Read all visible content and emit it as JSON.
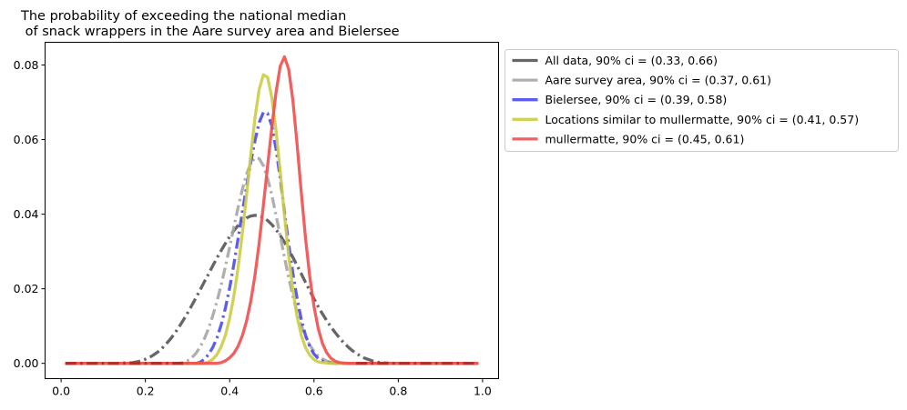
{
  "chart_data": {
    "type": "line",
    "title_lines": [
      "The probability of exceeding the national median",
      " of snack wrappers in the Aare survey area and Bielersee"
    ],
    "xlabel": "",
    "ylabel": "",
    "xlim": [
      -0.038,
      1.038
    ],
    "ylim": [
      -0.0041,
      0.0861
    ],
    "x_ticks": [
      0.0,
      0.2,
      0.4,
      0.6,
      0.8,
      1.0
    ],
    "x_tick_labels": [
      "0.0",
      "0.2",
      "0.4",
      "0.6",
      "0.8",
      "1.0"
    ],
    "y_ticks": [
      0.0,
      0.02,
      0.04,
      0.06,
      0.08
    ],
    "y_tick_labels": [
      "0.00",
      "0.02",
      "0.04",
      "0.06",
      "0.08"
    ],
    "grid": false,
    "legend_position": "outside-upper-right",
    "x": [
      0.01,
      0.02,
      0.03,
      0.04,
      0.05,
      0.06,
      0.07,
      0.08,
      0.09,
      0.1,
      0.11,
      0.12,
      0.13,
      0.14,
      0.15,
      0.16,
      0.17,
      0.18,
      0.19,
      0.2,
      0.21,
      0.22,
      0.23,
      0.24,
      0.25,
      0.26,
      0.27,
      0.28,
      0.29,
      0.3,
      0.31,
      0.32,
      0.33,
      0.34,
      0.35,
      0.36,
      0.37,
      0.38,
      0.39,
      0.4,
      0.41,
      0.42,
      0.43,
      0.44,
      0.45,
      0.46,
      0.47,
      0.48,
      0.49,
      0.5,
      0.51,
      0.52,
      0.53,
      0.54,
      0.55,
      0.56,
      0.57,
      0.58,
      0.59,
      0.6,
      0.61,
      0.62,
      0.63,
      0.64,
      0.65,
      0.66,
      0.67,
      0.68,
      0.69,
      0.7,
      0.71,
      0.72,
      0.73,
      0.74,
      0.75,
      0.76,
      0.77,
      0.78,
      0.79,
      0.8,
      0.81,
      0.82,
      0.83,
      0.84,
      0.85,
      0.86,
      0.87,
      0.88,
      0.89,
      0.9,
      0.91,
      0.92,
      0.93,
      0.94,
      0.95,
      0.96,
      0.97,
      0.98,
      0.99
    ],
    "series": [
      {
        "name": "All data, 90% ci = (0.33, 0.66)",
        "color": "#555555",
        "opacity": 0.9,
        "dash": "dashdot",
        "values": [
          0.0,
          0.0,
          0.0,
          0.0,
          0.0,
          0.0,
          0.0,
          0.0,
          0.0,
          0.0,
          0.0,
          0.0,
          0.0,
          0.0,
          0.0001,
          0.0001,
          0.0002,
          0.0004,
          0.0007,
          0.0011,
          0.0016,
          0.0023,
          0.0031,
          0.0041,
          0.0053,
          0.0066,
          0.0081,
          0.0098,
          0.0116,
          0.0135,
          0.0155,
          0.0176,
          0.0197,
          0.0219,
          0.024,
          0.0262,
          0.0283,
          0.0303,
          0.0322,
          0.034,
          0.0356,
          0.037,
          0.0381,
          0.039,
          0.0395,
          0.0397,
          0.0396,
          0.0391,
          0.0383,
          0.0372,
          0.0359,
          0.0343,
          0.0325,
          0.0305,
          0.0284,
          0.0262,
          0.024,
          0.0217,
          0.0195,
          0.0173,
          0.0152,
          0.0133,
          0.0115,
          0.0098,
          0.0083,
          0.0069,
          0.0056,
          0.0045,
          0.0035,
          0.0027,
          0.002,
          0.0014,
          0.001,
          0.0006,
          0.0003,
          0.0002,
          0.0001,
          0.0,
          0.0,
          0.0,
          0.0,
          0.0,
          0.0,
          0.0,
          0.0,
          0.0,
          0.0,
          0.0,
          0.0,
          0.0,
          0.0,
          0.0,
          0.0,
          0.0,
          0.0,
          0.0,
          0.0,
          0.0,
          0.0
        ]
      },
      {
        "name": "Aare survey area, 90% ci = (0.37, 0.61)",
        "color": "#a6a6a6",
        "opacity": 0.9,
        "dash": "dashdot",
        "values": [
          0.0,
          0.0,
          0.0,
          0.0,
          0.0,
          0.0,
          0.0,
          0.0,
          0.0,
          0.0,
          0.0,
          0.0,
          0.0,
          0.0,
          0.0,
          0.0,
          0.0,
          0.0,
          0.0,
          0.0,
          0.0,
          0.0,
          0.0,
          0.0,
          0.0,
          0.0,
          0.0,
          0.0,
          0.0002,
          0.0007,
          0.0015,
          0.0027,
          0.0044,
          0.0066,
          0.0094,
          0.0128,
          0.0167,
          0.0211,
          0.026,
          0.0312,
          0.0366,
          0.0418,
          0.0466,
          0.0507,
          0.0536,
          0.0551,
          0.0549,
          0.053,
          0.0496,
          0.0451,
          0.0398,
          0.0341,
          0.0284,
          0.023,
          0.018,
          0.0137,
          0.0101,
          0.0072,
          0.0049,
          0.0032,
          0.002,
          0.0012,
          0.0006,
          0.0003,
          0.0001,
          0.0,
          0.0,
          0.0,
          0.0,
          0.0,
          0.0,
          0.0,
          0.0,
          0.0,
          0.0,
          0.0,
          0.0,
          0.0,
          0.0,
          0.0,
          0.0,
          0.0,
          0.0,
          0.0,
          0.0,
          0.0,
          0.0,
          0.0,
          0.0,
          0.0,
          0.0,
          0.0,
          0.0,
          0.0,
          0.0,
          0.0,
          0.0,
          0.0,
          0.0
        ]
      },
      {
        "name": "Bielersee, 90% ci = (0.39, 0.58)",
        "color": "#4a4af0",
        "opacity": 0.9,
        "dash": "dashdot",
        "values": [
          0.0,
          0.0,
          0.0,
          0.0,
          0.0,
          0.0,
          0.0,
          0.0,
          0.0,
          0.0,
          0.0,
          0.0,
          0.0,
          0.0,
          0.0,
          0.0,
          0.0,
          0.0,
          0.0,
          0.0,
          0.0,
          0.0,
          0.0,
          0.0,
          0.0,
          0.0,
          0.0,
          0.0,
          0.0,
          0.0,
          0.0,
          0.0,
          0.0003,
          0.0011,
          0.0024,
          0.0043,
          0.0069,
          0.0104,
          0.0149,
          0.0203,
          0.0266,
          0.0335,
          0.0405,
          0.0474,
          0.0539,
          0.0597,
          0.0646,
          0.0673,
          0.067,
          0.0637,
          0.0575,
          0.0495,
          0.0407,
          0.032,
          0.0241,
          0.0173,
          0.0117,
          0.0075,
          0.0045,
          0.0025,
          0.0013,
          0.0006,
          0.0002,
          0.0001,
          0.0,
          0.0,
          0.0,
          0.0,
          0.0,
          0.0,
          0.0,
          0.0,
          0.0,
          0.0,
          0.0,
          0.0,
          0.0,
          0.0,
          0.0,
          0.0,
          0.0,
          0.0,
          0.0,
          0.0,
          0.0,
          0.0,
          0.0,
          0.0,
          0.0,
          0.0,
          0.0,
          0.0,
          0.0,
          0.0,
          0.0,
          0.0,
          0.0,
          0.0,
          0.0
        ]
      },
      {
        "name": "Locations similar to mullermatte, 90% ci = (0.41, 0.57)",
        "color": "#cccc44",
        "opacity": 0.9,
        "dash": "solid",
        "values": [
          0.0,
          0.0,
          0.0,
          0.0,
          0.0,
          0.0,
          0.0,
          0.0,
          0.0,
          0.0,
          0.0,
          0.0,
          0.0,
          0.0,
          0.0,
          0.0,
          0.0,
          0.0,
          0.0,
          0.0,
          0.0,
          0.0,
          0.0,
          0.0,
          0.0,
          0.0,
          0.0,
          0.0,
          0.0,
          0.0,
          0.0,
          0.0,
          0.0,
          0.0,
          0.0004,
          0.0011,
          0.0024,
          0.0045,
          0.0076,
          0.0121,
          0.0181,
          0.0257,
          0.0348,
          0.0451,
          0.0558,
          0.0658,
          0.0735,
          0.0774,
          0.0767,
          0.0713,
          0.0624,
          0.0513,
          0.0397,
          0.0288,
          0.0196,
          0.0125,
          0.0075,
          0.0042,
          0.0022,
          0.001,
          0.0004,
          0.0002,
          0.0001,
          0.0,
          0.0,
          0.0,
          0.0,
          0.0,
          0.0,
          0.0,
          0.0,
          0.0,
          0.0,
          0.0,
          0.0,
          0.0,
          0.0,
          0.0,
          0.0,
          0.0,
          0.0,
          0.0,
          0.0,
          0.0,
          0.0,
          0.0,
          0.0,
          0.0,
          0.0,
          0.0,
          0.0,
          0.0,
          0.0,
          0.0,
          0.0,
          0.0,
          0.0,
          0.0,
          0.0
        ]
      },
      {
        "name": "mullermatte, 90% ci = (0.45, 0.61)",
        "color": "#f04e4e",
        "opacity": 0.9,
        "dash": "solid",
        "values": [
          0.0,
          0.0,
          0.0,
          0.0,
          0.0,
          0.0,
          0.0,
          0.0,
          0.0,
          0.0,
          0.0,
          0.0,
          0.0,
          0.0,
          0.0,
          0.0,
          0.0,
          0.0,
          0.0,
          0.0,
          0.0,
          0.0,
          0.0,
          0.0,
          0.0,
          0.0,
          0.0,
          0.0,
          0.0,
          0.0,
          0.0,
          0.0,
          0.0,
          0.0,
          0.0,
          0.0,
          0.0,
          0.0002,
          0.0007,
          0.0015,
          0.0027,
          0.0046,
          0.0074,
          0.0113,
          0.0166,
          0.0236,
          0.0323,
          0.0424,
          0.053,
          0.0632,
          0.0727,
          0.0797,
          0.0822,
          0.0789,
          0.0705,
          0.0587,
          0.0457,
          0.0335,
          0.0233,
          0.0153,
          0.0094,
          0.0054,
          0.0029,
          0.0014,
          0.0006,
          0.0002,
          0.0001,
          0.0,
          0.0,
          0.0,
          0.0,
          0.0,
          0.0,
          0.0,
          0.0,
          0.0,
          0.0,
          0.0,
          0.0,
          0.0,
          0.0,
          0.0,
          0.0,
          0.0,
          0.0,
          0.0,
          0.0,
          0.0,
          0.0,
          0.0,
          0.0,
          0.0,
          0.0,
          0.0,
          0.0,
          0.0,
          0.0,
          0.0,
          0.0
        ]
      }
    ],
    "overlay_markers": {
      "name": "",
      "color": "#b03030",
      "style": "dashdot",
      "x_ranges": [
        [
          0.01,
          0.3
        ],
        [
          0.7,
          0.99
        ]
      ],
      "y": 0.0
    }
  }
}
